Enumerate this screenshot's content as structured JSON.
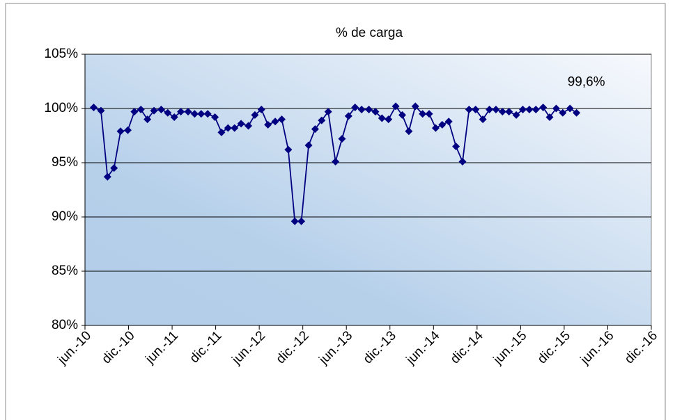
{
  "chart_data": {
    "type": "line",
    "title": "% de carga",
    "series": [
      {
        "name": "% de carga",
        "color": "#000080",
        "x": [
          1.2,
          2.2,
          3.1,
          4.0,
          4.9,
          5.9,
          6.8,
          7.7,
          8.6,
          9.5,
          10.5,
          11.4,
          12.3,
          13.2,
          14.2,
          15.1,
          16.0,
          16.9,
          17.9,
          18.8,
          19.7,
          20.6,
          21.5,
          22.5,
          23.4,
          24.3,
          25.2,
          26.2,
          27.1,
          28.0,
          28.9,
          29.8,
          30.8,
          31.7,
          32.6,
          33.5,
          34.5,
          35.4,
          36.3,
          37.2,
          38.1,
          39.1,
          40.0,
          40.9,
          41.8,
          42.8,
          43.7,
          44.6,
          45.5,
          46.5,
          47.4,
          48.3,
          49.2,
          50.1,
          51.1,
          52.0,
          52.9,
          53.8,
          54.8,
          55.7,
          56.6,
          57.5,
          58.4,
          59.4,
          60.3,
          61.2,
          62.1,
          63.1,
          64.0,
          64.9,
          65.8,
          66.8,
          67.7
        ],
        "values": [
          100.1,
          99.8,
          93.7,
          94.5,
          97.9,
          98.0,
          99.7,
          99.9,
          99.0,
          99.8,
          99.9,
          99.6,
          99.2,
          99.7,
          99.7,
          99.5,
          99.5,
          99.5,
          99.2,
          97.8,
          98.2,
          98.2,
          98.6,
          98.4,
          99.4,
          99.9,
          98.5,
          98.8,
          99.0,
          96.2,
          89.6,
          89.6,
          96.6,
          98.1,
          98.9,
          99.7,
          95.1,
          97.2,
          99.3,
          100.1,
          99.9,
          99.9,
          99.7,
          99.1,
          99.0,
          100.2,
          99.4,
          97.9,
          100.2,
          99.5,
          99.5,
          98.2,
          98.5,
          98.8,
          96.5,
          95.1,
          99.9,
          99.9,
          99.0,
          99.9,
          99.9,
          99.7,
          99.7,
          99.4,
          99.9,
          99.9,
          99.9,
          100.1,
          99.2,
          100.0,
          99.6,
          100.0,
          99.6
        ],
        "value_labels": [
          null,
          null,
          null,
          null,
          null,
          null,
          null,
          null,
          null,
          null,
          null,
          null,
          null,
          null,
          null,
          null,
          null,
          null,
          null,
          null,
          null,
          null,
          null,
          null,
          null,
          null,
          null,
          null,
          null,
          null,
          null,
          null,
          null,
          null,
          null,
          null,
          null,
          null,
          null,
          null,
          null,
          null,
          null,
          null,
          null,
          null,
          null,
          null,
          null,
          null,
          null,
          null,
          null,
          null,
          null,
          null,
          null,
          null,
          null,
          null,
          null,
          null,
          null,
          null,
          null,
          null,
          null,
          null,
          null,
          null,
          null,
          null,
          "99,6%"
        ]
      }
    ],
    "xlim": [
      0,
      72
    ],
    "xticks": [
      {
        "value": 0,
        "label": "jun.-10"
      },
      {
        "value": 6,
        "label": "dic.-10"
      },
      {
        "value": 12,
        "label": "jun.-11"
      },
      {
        "value": 18,
        "label": "dic.-11"
      },
      {
        "value": 24,
        "label": "jun.-12"
      },
      {
        "value": 30,
        "label": "dic.-12"
      },
      {
        "value": 36,
        "label": "jun.-13"
      },
      {
        "value": 42,
        "label": "dic.-13"
      },
      {
        "value": 48,
        "label": "jun.-14"
      },
      {
        "value": 54,
        "label": "dic.-14"
      },
      {
        "value": 60,
        "label": "jun.-15"
      },
      {
        "value": 66,
        "label": "dic.-15"
      },
      {
        "value": 72,
        "label": "jun.-16"
      },
      {
        "value": 78,
        "label": "dic.-16"
      }
    ],
    "ylim": [
      80,
      105
    ],
    "yticks": [
      {
        "value": 80,
        "label": "80%"
      },
      {
        "value": 85,
        "label": "85%"
      },
      {
        "value": 90,
        "label": "90%"
      },
      {
        "value": 95,
        "label": "95%"
      },
      {
        "value": 100,
        "label": "100%"
      },
      {
        "value": 105,
        "label": "105%"
      }
    ],
    "grid": true
  }
}
